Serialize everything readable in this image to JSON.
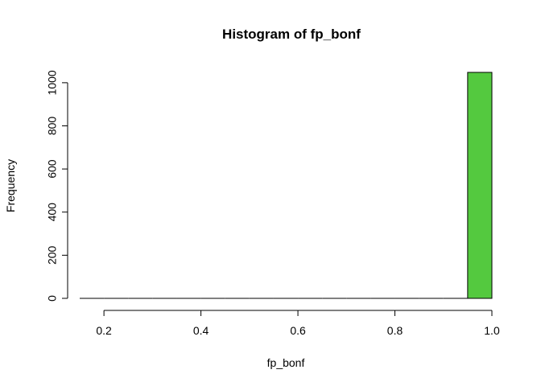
{
  "chart_data": {
    "type": "bar",
    "title": "Histogram of fp_bonf",
    "xlabel": "fp_bonf",
    "ylabel": "Frequency",
    "bin_edges": [
      0.15,
      0.2,
      0.25,
      0.3,
      0.35,
      0.4,
      0.45,
      0.5,
      0.55,
      0.6,
      0.65,
      0.7,
      0.75,
      0.8,
      0.85,
      0.9,
      0.95,
      1.0
    ],
    "values": [
      0,
      0,
      0,
      0,
      0,
      0,
      0,
      0,
      0,
      0,
      0,
      0,
      0,
      0,
      0,
      0,
      1048
    ],
    "xlim": [
      0.15,
      1.0
    ],
    "ylim": [
      0,
      1048
    ],
    "x_ticks": [
      0.2,
      0.4,
      0.6,
      0.8,
      1.0
    ],
    "x_tick_labels": [
      "0.2",
      "0.4",
      "0.6",
      "0.8",
      "1.0"
    ],
    "y_ticks": [
      0,
      200,
      400,
      600,
      800,
      1000
    ],
    "y_tick_labels": [
      "0",
      "200",
      "400",
      "600",
      "800",
      "1000"
    ],
    "grid": false,
    "colors": {
      "bar_fill": "#54c93f",
      "bar_stroke": "#000000",
      "axis": "#000000"
    }
  }
}
